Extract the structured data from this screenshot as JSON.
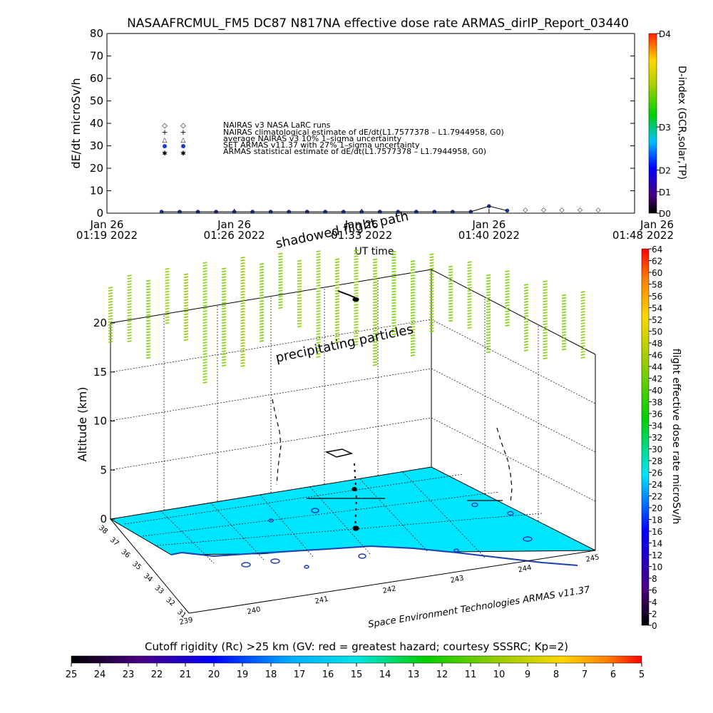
{
  "top_plot": {
    "title": "NASAAFRCMUL_FM5 DC87 N817NA effective dose rate ARMAS_dirIP_Report_03440",
    "ylabel": "dE/dt microSv/h",
    "xlabel": "UT time",
    "yticks": [
      "0",
      "10",
      "20",
      "30",
      "40",
      "50",
      "60",
      "70",
      "80"
    ],
    "xticks": [
      {
        "line1": "Jan 26",
        "line2": "01:19 2022"
      },
      {
        "line1": "Jan 26",
        "line2": "01:26 2022"
      },
      {
        "line1": "Jan 26",
        "line2": "01:33 2022"
      },
      {
        "line1": "Jan 26",
        "line2": "01:40 2022"
      },
      {
        "line1": "Jan 26",
        "line2": "01:48 2022"
      }
    ],
    "legend": [
      {
        "symbol": "◇",
        "text": "NAIRAS v3 NASA LaRC runs",
        "color": "#000000"
      },
      {
        "symbol": "+",
        "text": "NAIRAS climatological estimate of dE/dt(L1.7577378 – L1.7944958, G0)",
        "color": "#000000"
      },
      {
        "symbol": "△",
        "text": "average NAIRAS v3 10% 1–sigma uncertainty",
        "color": "#000000"
      },
      {
        "symbol": "●",
        "text": "SET ARMAS v11.37 with 27% 1–sigma uncertainty",
        "color": "#1f3fbf"
      },
      {
        "symbol": "✱",
        "text": "ARMAS statistical estimate of dE/dt(L1.7577378 – L1.7944958, G0)",
        "color": "#000000"
      }
    ],
    "right_colorbar": {
      "label": "D-index (GCR,solar,TP)",
      "ticks": [
        "D0",
        "D1",
        "D2",
        "D3",
        "D4"
      ]
    }
  },
  "annotations": {
    "shadowed_flight_path": "shadowed flight path",
    "precipitating_particles": "precipitating particles",
    "credit": "Space Environment Technologies ARMAS v11.37"
  },
  "main_plot": {
    "zlabel": "Altitude (km)",
    "zticks": [
      "0",
      "5",
      "10",
      "15",
      "20"
    ],
    "lat_ticks": [
      "38",
      "37",
      "36",
      "35",
      "34",
      "33",
      "32",
      "31"
    ],
    "lon_ticks": [
      "239",
      "240",
      "241",
      "242",
      "243",
      "244",
      "245"
    ],
    "right_colorbar": {
      "label": "flight effective dose rate microSv/h",
      "ticks": [
        "0",
        "2",
        "4",
        "6",
        "8",
        "10",
        "12",
        "14",
        "16",
        "18",
        "20",
        "22",
        "24",
        "26",
        "28",
        "30",
        "32",
        "34",
        "36",
        "38",
        "40",
        "42",
        "44",
        "46",
        "48",
        "50",
        "52",
        "54",
        "56",
        "58",
        "60",
        "62",
        "64"
      ]
    }
  },
  "bottom_colorbar": {
    "title": "Cutoff rigidity (Rc) >25 km (GV: red = greatest hazard; courtesy SSSRC; Kp=2)",
    "ticks": [
      "25",
      "24",
      "23",
      "22",
      "21",
      "20",
      "19",
      "18",
      "17",
      "16",
      "15",
      "14",
      "13",
      "12",
      "11",
      "10",
      "9",
      "8",
      "7",
      "6",
      "5"
    ]
  },
  "colors": {
    "ground_cutoff": "#00e5ff",
    "dose_marks": "#7fd400",
    "flight_path": "#000000"
  },
  "chart_data": {
    "type": "line",
    "title": "NASAAFRCMUL_FM5 DC87 N817NA effective dose rate ARMAS_dirIP_Report_03440",
    "xlabel": "UT time",
    "ylabel": "dE/dt microSv/h",
    "ylim": [
      0,
      80
    ],
    "x_range": [
      "01:19",
      "01:48"
    ],
    "series": [
      {
        "name": "SET ARMAS v11.37 with 27% 1–sigma uncertainty",
        "x": [
          "01:22",
          "01:23",
          "01:24",
          "01:25",
          "01:26",
          "01:27",
          "01:28",
          "01:29",
          "01:30",
          "01:31",
          "01:32",
          "01:33",
          "01:34",
          "01:35",
          "01:36",
          "01:37",
          "01:38",
          "01:39",
          "01:40",
          "01:41"
        ],
        "values": [
          0,
          0,
          0,
          0,
          0,
          0,
          0,
          0,
          0,
          0,
          0,
          0,
          0,
          0,
          0,
          0,
          0,
          0,
          2.5,
          0.5
        ]
      },
      {
        "name": "NAIRAS v3 NASA LaRC runs",
        "x": [
          "01:42",
          "01:43",
          "01:44",
          "01:45",
          "01:46"
        ],
        "values": [
          1,
          1,
          1,
          1,
          1
        ]
      }
    ],
    "legend_position": "upper-left"
  }
}
